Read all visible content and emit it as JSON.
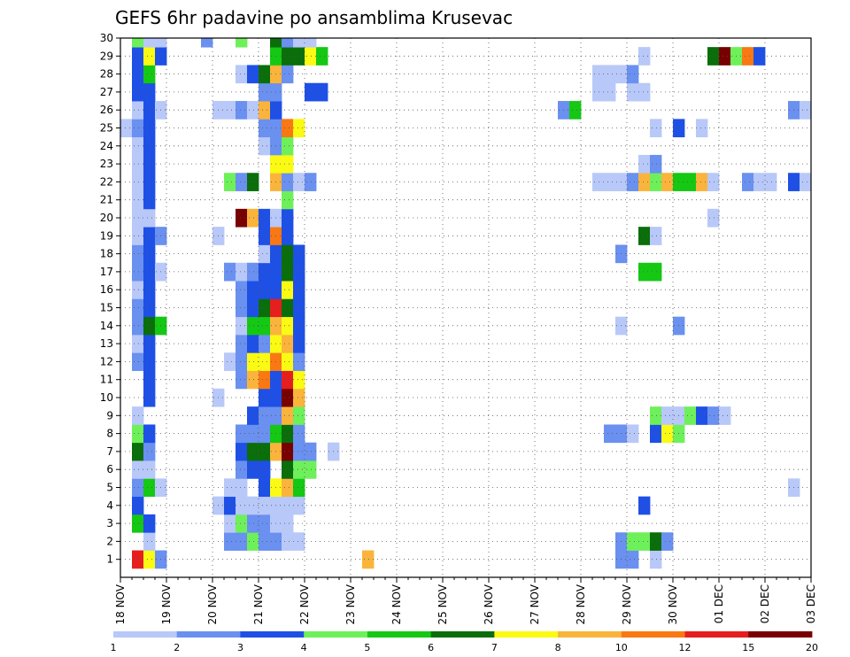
{
  "chart_data": {
    "type": "heatmap",
    "title": "GEFS 6hr padavine po ansamblima Krusevac",
    "x_tick_labels": [
      "18 NOV",
      "19 NOV",
      "20 NOV",
      "21 NOV",
      "22 NOV",
      "23 NOV",
      "24 NOV",
      "25 NOV",
      "26 NOV",
      "27 NOV",
      "28 NOV",
      "29 NOV",
      "30 NOV",
      "01 DEC",
      "02 DEC",
      "03 DEC"
    ],
    "y_tick_labels": [
      "1",
      "2",
      "3",
      "4",
      "5",
      "6",
      "7",
      "8",
      "9",
      "10",
      "11",
      "12",
      "13",
      "14",
      "15",
      "16",
      "17",
      "18",
      "19",
      "20",
      "21",
      "22",
      "23",
      "24",
      "25",
      "26",
      "27",
      "28",
      "29",
      "30"
    ],
    "ylim": [
      0,
      30
    ],
    "x_steps": 60,
    "grid": true,
    "colorbar": {
      "labels": [
        "1",
        "2",
        "3",
        "4",
        "5",
        "6",
        "7",
        "8",
        "10",
        "12",
        "15",
        "20"
      ],
      "colors": [
        "#b8c8f8",
        "#6a90f0",
        "#1e50e6",
        "#6ef05a",
        "#14c814",
        "#0a6e0a",
        "#fafa14",
        "#fab43c",
        "#fa7814",
        "#e61e1e",
        "#780000"
      ]
    },
    "cells": [
      [
        1,
        9,
        9
      ],
      [
        1,
        10,
        6
      ],
      [
        1,
        11,
        1
      ],
      [
        1,
        29,
        7
      ],
      [
        1,
        51,
        1
      ],
      [
        1,
        52,
        1
      ],
      [
        1,
        54,
        0
      ],
      [
        1,
        87,
        0
      ],
      [
        2,
        10,
        0
      ],
      [
        2,
        17,
        1
      ],
      [
        2,
        18,
        1
      ],
      [
        2,
        19,
        3
      ],
      [
        2,
        20,
        1
      ],
      [
        2,
        21,
        1
      ],
      [
        2,
        22,
        0
      ],
      [
        2,
        23,
        0
      ],
      [
        2,
        51,
        1
      ],
      [
        2,
        52,
        3
      ],
      [
        2,
        53,
        3
      ],
      [
        2,
        54,
        5
      ],
      [
        2,
        55,
        1
      ],
      [
        3,
        9,
        4
      ],
      [
        3,
        10,
        2
      ],
      [
        3,
        17,
        0
      ],
      [
        3,
        18,
        3
      ],
      [
        3,
        19,
        1
      ],
      [
        3,
        20,
        1
      ],
      [
        3,
        21,
        0
      ],
      [
        3,
        22,
        0
      ],
      [
        3,
        71,
        0
      ],
      [
        4,
        9,
        2
      ],
      [
        4,
        16,
        0
      ],
      [
        4,
        17,
        2
      ],
      [
        4,
        18,
        0
      ],
      [
        4,
        19,
        0
      ],
      [
        4,
        20,
        0
      ],
      [
        4,
        21,
        0
      ],
      [
        4,
        22,
        0
      ],
      [
        4,
        23,
        0
      ],
      [
        4,
        53,
        2
      ],
      [
        4,
        71,
        0
      ],
      [
        5,
        9,
        1
      ],
      [
        5,
        10,
        4
      ],
      [
        5,
        11,
        0
      ],
      [
        5,
        17,
        0
      ],
      [
        5,
        18,
        0
      ],
      [
        5,
        20,
        2
      ],
      [
        5,
        21,
        6
      ],
      [
        5,
        22,
        7
      ],
      [
        5,
        23,
        4
      ],
      [
        5,
        66,
        0
      ],
      [
        6,
        9,
        0
      ],
      [
        6,
        10,
        0
      ],
      [
        6,
        18,
        1
      ],
      [
        6,
        19,
        2
      ],
      [
        6,
        20,
        2
      ],
      [
        6,
        22,
        5
      ],
      [
        6,
        23,
        3
      ],
      [
        6,
        24,
        3
      ],
      [
        6,
        81,
        3
      ],
      [
        6,
        82,
        3
      ],
      [
        6,
        83,
        0
      ],
      [
        6,
        84,
        0
      ],
      [
        6,
        85,
        0
      ],
      [
        6,
        90,
        1
      ],
      [
        6,
        98,
        1
      ],
      [
        7,
        9,
        5
      ],
      [
        7,
        10,
        1
      ],
      [
        7,
        18,
        2
      ],
      [
        7,
        19,
        5
      ],
      [
        7,
        20,
        5
      ],
      [
        7,
        21,
        7
      ],
      [
        7,
        22,
        10
      ],
      [
        7,
        23,
        1
      ],
      [
        7,
        24,
        1
      ],
      [
        7,
        26,
        0
      ],
      [
        7,
        81,
        3
      ],
      [
        8,
        9,
        3
      ],
      [
        8,
        10,
        2
      ],
      [
        8,
        18,
        1
      ],
      [
        8,
        19,
        1
      ],
      [
        8,
        20,
        1
      ],
      [
        8,
        21,
        4
      ],
      [
        8,
        22,
        5
      ],
      [
        8,
        23,
        1
      ],
      [
        8,
        50,
        1
      ],
      [
        8,
        51,
        1
      ],
      [
        8,
        52,
        0
      ],
      [
        8,
        54,
        2
      ],
      [
        8,
        55,
        6
      ],
      [
        8,
        56,
        3
      ],
      [
        8,
        71,
        2
      ],
      [
        8,
        73,
        2
      ],
      [
        8,
        74,
        1
      ],
      [
        8,
        75,
        2
      ],
      [
        8,
        76,
        1
      ],
      [
        8,
        77,
        1
      ],
      [
        8,
        78,
        0
      ],
      [
        9,
        9,
        0
      ],
      [
        9,
        19,
        2
      ],
      [
        9,
        20,
        1
      ],
      [
        9,
        21,
        1
      ],
      [
        9,
        22,
        7
      ],
      [
        9,
        23,
        3
      ],
      [
        9,
        54,
        3
      ],
      [
        9,
        55,
        0
      ],
      [
        9,
        56,
        0
      ],
      [
        9,
        57,
        3
      ],
      [
        9,
        58,
        2
      ],
      [
        9,
        59,
        1
      ],
      [
        9,
        60,
        0
      ],
      [
        9,
        78,
        0
      ],
      [
        9,
        80,
        0
      ],
      [
        10,
        10,
        2
      ],
      [
        10,
        16,
        0
      ],
      [
        10,
        20,
        2
      ],
      [
        10,
        21,
        2
      ],
      [
        10,
        22,
        10
      ],
      [
        10,
        23,
        7
      ],
      [
        10,
        90,
        3
      ],
      [
        11,
        10,
        2
      ],
      [
        11,
        18,
        1
      ],
      [
        11,
        19,
        7
      ],
      [
        11,
        20,
        8
      ],
      [
        11,
        21,
        2
      ],
      [
        11,
        22,
        9
      ],
      [
        11,
        23,
        6
      ],
      [
        11,
        74,
        1
      ],
      [
        11,
        75,
        0
      ],
      [
        12,
        9,
        1
      ],
      [
        12,
        10,
        2
      ],
      [
        12,
        17,
        0
      ],
      [
        12,
        18,
        1
      ],
      [
        12,
        19,
        6
      ],
      [
        12,
        20,
        6
      ],
      [
        12,
        21,
        8
      ],
      [
        12,
        22,
        6
      ],
      [
        12,
        23,
        1
      ],
      [
        13,
        9,
        0
      ],
      [
        13,
        10,
        2
      ],
      [
        13,
        18,
        1
      ],
      [
        13,
        19,
        2
      ],
      [
        13,
        20,
        1
      ],
      [
        13,
        21,
        6
      ],
      [
        13,
        22,
        7
      ],
      [
        13,
        23,
        2
      ],
      [
        14,
        9,
        1
      ],
      [
        14,
        10,
        5
      ],
      [
        14,
        11,
        4
      ],
      [
        14,
        18,
        0
      ],
      [
        14,
        19,
        4
      ],
      [
        14,
        20,
        4
      ],
      [
        14,
        21,
        7
      ],
      [
        14,
        22,
        6
      ],
      [
        14,
        23,
        2
      ],
      [
        14,
        51,
        0
      ],
      [
        14,
        56,
        1
      ],
      [
        15,
        9,
        1
      ],
      [
        15,
        10,
        2
      ],
      [
        15,
        18,
        1
      ],
      [
        15,
        19,
        2
      ],
      [
        15,
        20,
        5
      ],
      [
        15,
        21,
        9
      ],
      [
        15,
        22,
        5
      ],
      [
        15,
        23,
        2
      ],
      [
        15,
        89,
        2
      ],
      [
        15,
        99,
        4
      ],
      [
        15,
        108,
        2
      ],
      [
        15,
        116,
        0
      ],
      [
        16,
        9,
        0
      ],
      [
        16,
        10,
        2
      ],
      [
        16,
        18,
        1
      ],
      [
        16,
        19,
        2
      ],
      [
        16,
        20,
        2
      ],
      [
        16,
        21,
        2
      ],
      [
        16,
        22,
        6
      ],
      [
        16,
        23,
        2
      ],
      [
        16,
        71,
        3
      ],
      [
        16,
        72,
        0
      ],
      [
        16,
        73,
        0
      ],
      [
        17,
        9,
        1
      ],
      [
        17,
        10,
        2
      ],
      [
        17,
        11,
        0
      ],
      [
        17,
        17,
        1
      ],
      [
        17,
        18,
        0
      ],
      [
        17,
        19,
        1
      ],
      [
        17,
        20,
        2
      ],
      [
        17,
        21,
        2
      ],
      [
        17,
        22,
        5
      ],
      [
        17,
        23,
        2
      ],
      [
        17,
        53,
        4
      ],
      [
        17,
        54,
        4
      ],
      [
        17,
        76,
        9
      ],
      [
        18,
        9,
        1
      ],
      [
        18,
        10,
        2
      ],
      [
        18,
        20,
        0
      ],
      [
        18,
        21,
        2
      ],
      [
        18,
        22,
        5
      ],
      [
        18,
        23,
        2
      ],
      [
        18,
        51,
        1
      ],
      [
        18,
        76,
        0
      ],
      [
        18,
        90,
        0
      ],
      [
        18,
        98,
        0
      ],
      [
        19,
        9,
        0
      ],
      [
        19,
        10,
        2
      ],
      [
        19,
        11,
        1
      ],
      [
        19,
        16,
        0
      ],
      [
        19,
        20,
        2
      ],
      [
        19,
        21,
        8
      ],
      [
        19,
        22,
        2
      ],
      [
        19,
        53,
        5
      ],
      [
        19,
        54,
        0
      ],
      [
        20,
        9,
        0
      ],
      [
        20,
        10,
        0
      ],
      [
        20,
        18,
        10
      ],
      [
        20,
        19,
        7
      ],
      [
        20,
        20,
        2
      ],
      [
        20,
        21,
        0
      ],
      [
        20,
        22,
        2
      ],
      [
        20,
        59,
        0
      ],
      [
        21,
        9,
        0
      ],
      [
        21,
        10,
        2
      ],
      [
        21,
        22,
        3
      ],
      [
        21,
        80,
        0
      ],
      [
        22,
        9,
        0
      ],
      [
        22,
        10,
        2
      ],
      [
        22,
        17,
        3
      ],
      [
        22,
        18,
        1
      ],
      [
        22,
        19,
        5
      ],
      [
        22,
        21,
        7
      ],
      [
        22,
        22,
        1
      ],
      [
        22,
        23,
        0
      ],
      [
        22,
        24,
        1
      ],
      [
        22,
        49,
        0
      ],
      [
        22,
        50,
        0
      ],
      [
        22,
        51,
        0
      ],
      [
        22,
        52,
        1
      ],
      [
        22,
        53,
        7
      ],
      [
        22,
        54,
        3
      ],
      [
        22,
        55,
        7
      ],
      [
        22,
        56,
        4
      ],
      [
        22,
        57,
        4
      ],
      [
        22,
        58,
        7
      ],
      [
        22,
        59,
        0
      ],
      [
        22,
        62,
        1
      ],
      [
        22,
        63,
        0
      ],
      [
        22,
        64,
        0
      ],
      [
        22,
        66,
        2
      ],
      [
        22,
        67,
        0
      ],
      [
        22,
        85,
        0
      ],
      [
        22,
        98,
        0
      ],
      [
        22,
        99,
        0
      ],
      [
        22,
        102,
        0
      ],
      [
        22,
        112,
        0
      ],
      [
        22,
        113,
        5
      ],
      [
        23,
        9,
        0
      ],
      [
        23,
        10,
        2
      ],
      [
        23,
        21,
        6
      ],
      [
        23,
        22,
        6
      ],
      [
        23,
        53,
        0
      ],
      [
        23,
        54,
        1
      ],
      [
        24,
        9,
        0
      ],
      [
        24,
        10,
        2
      ],
      [
        24,
        20,
        0
      ],
      [
        24,
        21,
        1
      ],
      [
        24,
        22,
        3
      ],
      [
        25,
        8,
        0
      ],
      [
        25,
        9,
        1
      ],
      [
        25,
        10,
        2
      ],
      [
        25,
        20,
        1
      ],
      [
        25,
        21,
        1
      ],
      [
        25,
        22,
        8
      ],
      [
        25,
        23,
        6
      ],
      [
        25,
        54,
        0
      ],
      [
        25,
        56,
        2
      ],
      [
        25,
        58,
        0
      ],
      [
        25,
        96,
        0
      ],
      [
        25,
        106,
        7
      ],
      [
        25,
        107,
        1
      ],
      [
        26,
        9,
        0
      ],
      [
        26,
        10,
        2
      ],
      [
        26,
        11,
        0
      ],
      [
        26,
        16,
        0
      ],
      [
        26,
        17,
        0
      ],
      [
        26,
        18,
        1
      ],
      [
        26,
        19,
        0
      ],
      [
        26,
        20,
        7
      ],
      [
        26,
        21,
        2
      ],
      [
        26,
        46,
        1
      ],
      [
        26,
        47,
        4
      ],
      [
        26,
        66,
        1
      ],
      [
        26,
        67,
        0
      ],
      [
        26,
        68,
        3
      ],
      [
        26,
        69,
        0
      ],
      [
        26,
        70,
        8
      ],
      [
        26,
        71,
        3
      ],
      [
        26,
        84,
        0
      ],
      [
        26,
        85,
        0
      ],
      [
        26,
        90,
        0
      ],
      [
        26,
        101,
        2
      ],
      [
        27,
        9,
        2
      ],
      [
        27,
        10,
        2
      ],
      [
        27,
        20,
        1
      ],
      [
        27,
        21,
        1
      ],
      [
        27,
        24,
        2
      ],
      [
        27,
        25,
        2
      ],
      [
        27,
        49,
        0
      ],
      [
        27,
        50,
        0
      ],
      [
        27,
        52,
        0
      ],
      [
        27,
        53,
        0
      ],
      [
        27,
        78,
        0
      ],
      [
        27,
        79,
        0
      ],
      [
        27,
        84,
        0
      ],
      [
        27,
        85,
        0
      ],
      [
        28,
        9,
        2
      ],
      [
        28,
        10,
        4
      ],
      [
        28,
        18,
        0
      ],
      [
        28,
        19,
        2
      ],
      [
        28,
        20,
        5
      ],
      [
        28,
        21,
        7
      ],
      [
        28,
        22,
        1
      ],
      [
        28,
        49,
        0
      ],
      [
        28,
        50,
        0
      ],
      [
        28,
        51,
        0
      ],
      [
        28,
        52,
        1
      ],
      [
        29,
        9,
        2
      ],
      [
        29,
        10,
        6
      ],
      [
        29,
        11,
        2
      ],
      [
        29,
        21,
        4
      ],
      [
        29,
        22,
        5
      ],
      [
        29,
        23,
        5
      ],
      [
        29,
        24,
        6
      ],
      [
        29,
        25,
        4
      ],
      [
        29,
        53,
        0
      ],
      [
        29,
        59,
        5
      ],
      [
        29,
        60,
        10
      ],
      [
        29,
        61,
        3
      ],
      [
        29,
        62,
        8
      ],
      [
        29,
        63,
        2
      ],
      [
        29,
        78,
        0
      ],
      [
        29,
        79,
        2
      ],
      [
        29,
        80,
        0
      ],
      [
        29,
        106,
        0
      ],
      [
        29,
        109,
        0
      ],
      [
        29,
        110,
        0
      ],
      [
        29,
        112,
        0
      ],
      [
        30,
        9,
        3
      ],
      [
        30,
        10,
        0
      ],
      [
        30,
        11,
        0
      ],
      [
        30,
        15,
        1
      ],
      [
        30,
        18,
        3
      ],
      [
        30,
        21,
        5
      ],
      [
        30,
        22,
        1
      ],
      [
        30,
        23,
        0
      ],
      [
        30,
        24,
        0
      ],
      [
        30,
        69,
        1
      ],
      [
        30,
        70,
        1
      ]
    ]
  }
}
